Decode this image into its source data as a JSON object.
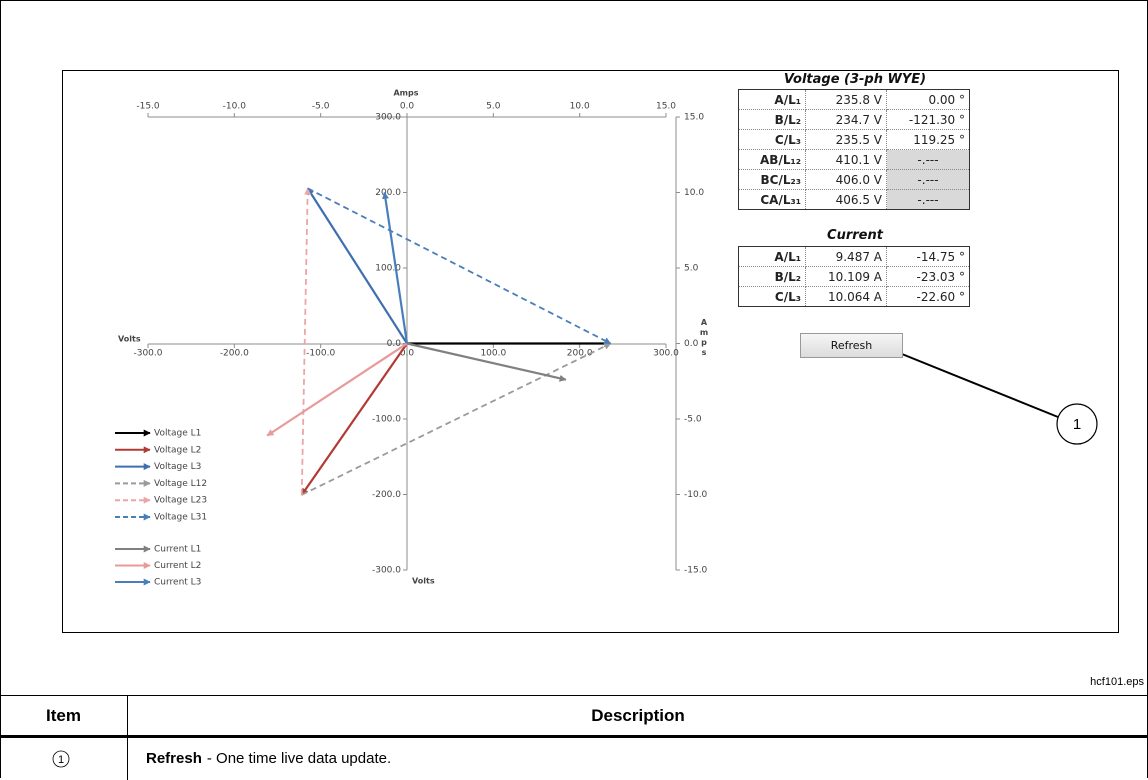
{
  "chart_data": {
    "type": "vector",
    "x_label": "Volts",
    "y_label": "Volts",
    "x2_label": "Amps",
    "y2_label": "Amps",
    "xlim": [
      -300,
      300
    ],
    "ylim": [
      -300,
      300
    ],
    "x2lim": [
      -15,
      15
    ],
    "y2lim": [
      -15,
      15
    ],
    "xticks": [
      {
        "value": -300,
        "label": "-300.0"
      },
      {
        "value": -200,
        "label": "-200.0"
      },
      {
        "value": -100,
        "label": "-100.0"
      },
      {
        "value": 0,
        "label": "0.0"
      },
      {
        "value": 100,
        "label": "100.0"
      },
      {
        "value": 200,
        "label": "200.0"
      },
      {
        "value": 300,
        "label": "300.0"
      }
    ],
    "yticks": [
      {
        "value": 300,
        "label": "300.0"
      },
      {
        "value": 200,
        "label": "200.0"
      },
      {
        "value": 100,
        "label": "100.0"
      },
      {
        "value": 0,
        "label": "0.0"
      },
      {
        "value": -100,
        "label": "-100.0"
      },
      {
        "value": -200,
        "label": "-200.0"
      },
      {
        "value": -300,
        "label": "-300.0"
      }
    ],
    "x2ticks": [
      {
        "value": -15,
        "label": "-15.0"
      },
      {
        "value": -10,
        "label": "-10.0"
      },
      {
        "value": -5,
        "label": "-5.0"
      },
      {
        "value": 0,
        "label": "0.0"
      },
      {
        "value": 5,
        "label": "5.0"
      },
      {
        "value": 10,
        "label": "10.0"
      },
      {
        "value": 15,
        "label": "15.0"
      }
    ],
    "y2ticks": [
      {
        "value": 15,
        "label": "15.0"
      },
      {
        "value": 10,
        "label": "10.0"
      },
      {
        "value": 5,
        "label": "5.0"
      },
      {
        "value": 0,
        "label": "0.0"
      },
      {
        "value": -5,
        "label": "-5.0"
      },
      {
        "value": -10,
        "label": "-10.0"
      },
      {
        "value": -15,
        "label": "-15.0"
      }
    ],
    "series": [
      {
        "name": "Voltage L1",
        "color": "#000000",
        "dash": false,
        "x": [
          0,
          235.8
        ],
        "y": [
          0,
          0
        ]
      },
      {
        "name": "Voltage L2",
        "color": "#b23a35",
        "dash": false,
        "x": [
          0,
          -121.9
        ],
        "y": [
          0,
          -200.5
        ]
      },
      {
        "name": "Voltage L3",
        "color": "#3f6fae",
        "dash": false,
        "x": [
          0,
          -115.0
        ],
        "y": [
          0,
          205.5
        ]
      },
      {
        "name": "Voltage L12",
        "color": "#9a9a9a",
        "dash": true,
        "x": [
          -121.9,
          235.8
        ],
        "y": [
          -200.5,
          0
        ]
      },
      {
        "name": "Voltage L23",
        "color": "#eba5a5",
        "dash": true,
        "x": [
          -121.9,
          -115.0
        ],
        "y": [
          -200.5,
          205.5
        ]
      },
      {
        "name": "Voltage L31",
        "color": "#4a7ebb",
        "dash": true,
        "x": [
          -115.0,
          235.8
        ],
        "y": [
          205.5,
          0
        ]
      },
      {
        "name": "Current L1",
        "color": "#808080",
        "dash": false,
        "axis": "y2",
        "x": [
          0,
          9.2
        ],
        "y": [
          0,
          -2.4
        ]
      },
      {
        "name": "Current L2",
        "color": "#e89a9a",
        "dash": false,
        "axis": "y2",
        "x": [
          0,
          -8.1
        ],
        "y": [
          0,
          -6.1
        ]
      },
      {
        "name": "Current L3",
        "color": "#4a7ebb",
        "dash": false,
        "axis": "y2",
        "x": [
          0,
          -1.3
        ],
        "y": [
          0,
          10.0
        ]
      }
    ]
  },
  "voltage_table": {
    "title": "Voltage (3-ph WYE)",
    "rows": [
      [
        "A/L₁",
        "235.8 V",
        "0.00 °"
      ],
      [
        "B/L₂",
        "234.7 V",
        "-121.30 °"
      ],
      [
        "C/L₃",
        "235.5 V",
        "119.25 °"
      ],
      [
        "AB/L₁₂",
        "410.1 V",
        "-.---"
      ],
      [
        "BC/L₂₃",
        "406.0 V",
        "-.---"
      ],
      [
        "CA/L₃₁",
        "406.5 V",
        "-.---"
      ]
    ]
  },
  "current_table": {
    "title": "Current",
    "rows": [
      [
        "A/L₁",
        "9.487 A",
        "-14.75 °"
      ],
      [
        "B/L₂",
        "10.109 A",
        "-23.03 °"
      ],
      [
        "C/L₃",
        "10.064 A",
        "-22.60 °"
      ]
    ]
  },
  "button": "Refresh",
  "callout": "1",
  "figure_id": "hcf101.eps",
  "key_table": {
    "headers": [
      "Item",
      "Description"
    ],
    "rows": [
      {
        "item": "1",
        "term": "Refresh",
        "description": "- One time live data update."
      }
    ]
  }
}
